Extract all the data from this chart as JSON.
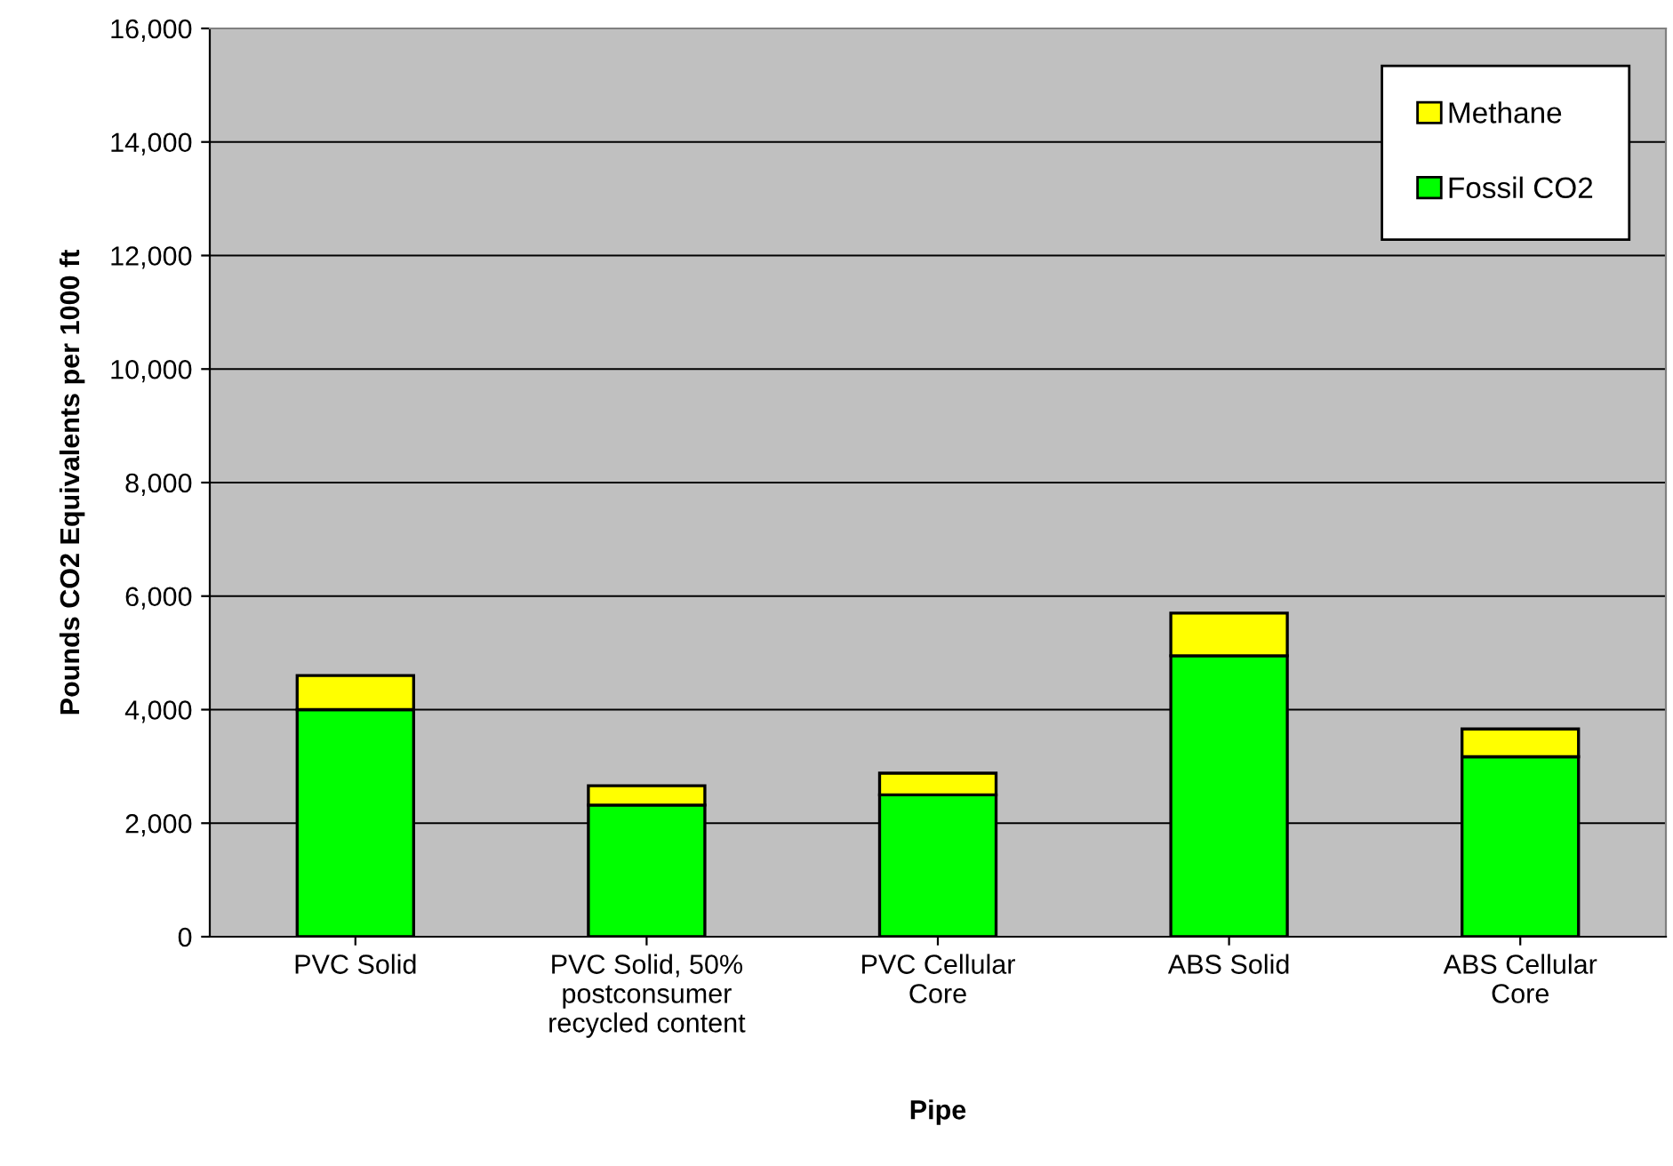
{
  "chart_data": {
    "type": "bar",
    "stacked": true,
    "categories": [
      "PVC Solid",
      "PVC Solid, 50% postconsumer recycled content",
      "PVC Cellular Core",
      "ABS Solid",
      "ABS Cellular Core"
    ],
    "series": [
      {
        "name": "Fossil CO2",
        "color": "#00ff00",
        "values": [
          4000,
          2320,
          2500,
          4950,
          3170
        ]
      },
      {
        "name": "Methane",
        "color": "#ffff00",
        "values": [
          600,
          340,
          380,
          750,
          490
        ]
      }
    ],
    "xlabel": "Pipe",
    "ylabel": "Pounds CO2 Equivalents per 1000 ft",
    "ylim": [
      0,
      16000
    ],
    "yticks": [
      {
        "value": 0,
        "label": "0"
      },
      {
        "value": 2000,
        "label": "2,000"
      },
      {
        "value": 4000,
        "label": "4,000"
      },
      {
        "value": 6000,
        "label": "6,000"
      },
      {
        "value": 8000,
        "label": "8,000"
      },
      {
        "value": 10000,
        "label": "10,000"
      },
      {
        "value": 12000,
        "label": "12,000"
      },
      {
        "value": 14000,
        "label": "14,000"
      },
      {
        "value": 16000,
        "label": "16,000"
      }
    ],
    "grid": "y",
    "legend": "top right"
  }
}
